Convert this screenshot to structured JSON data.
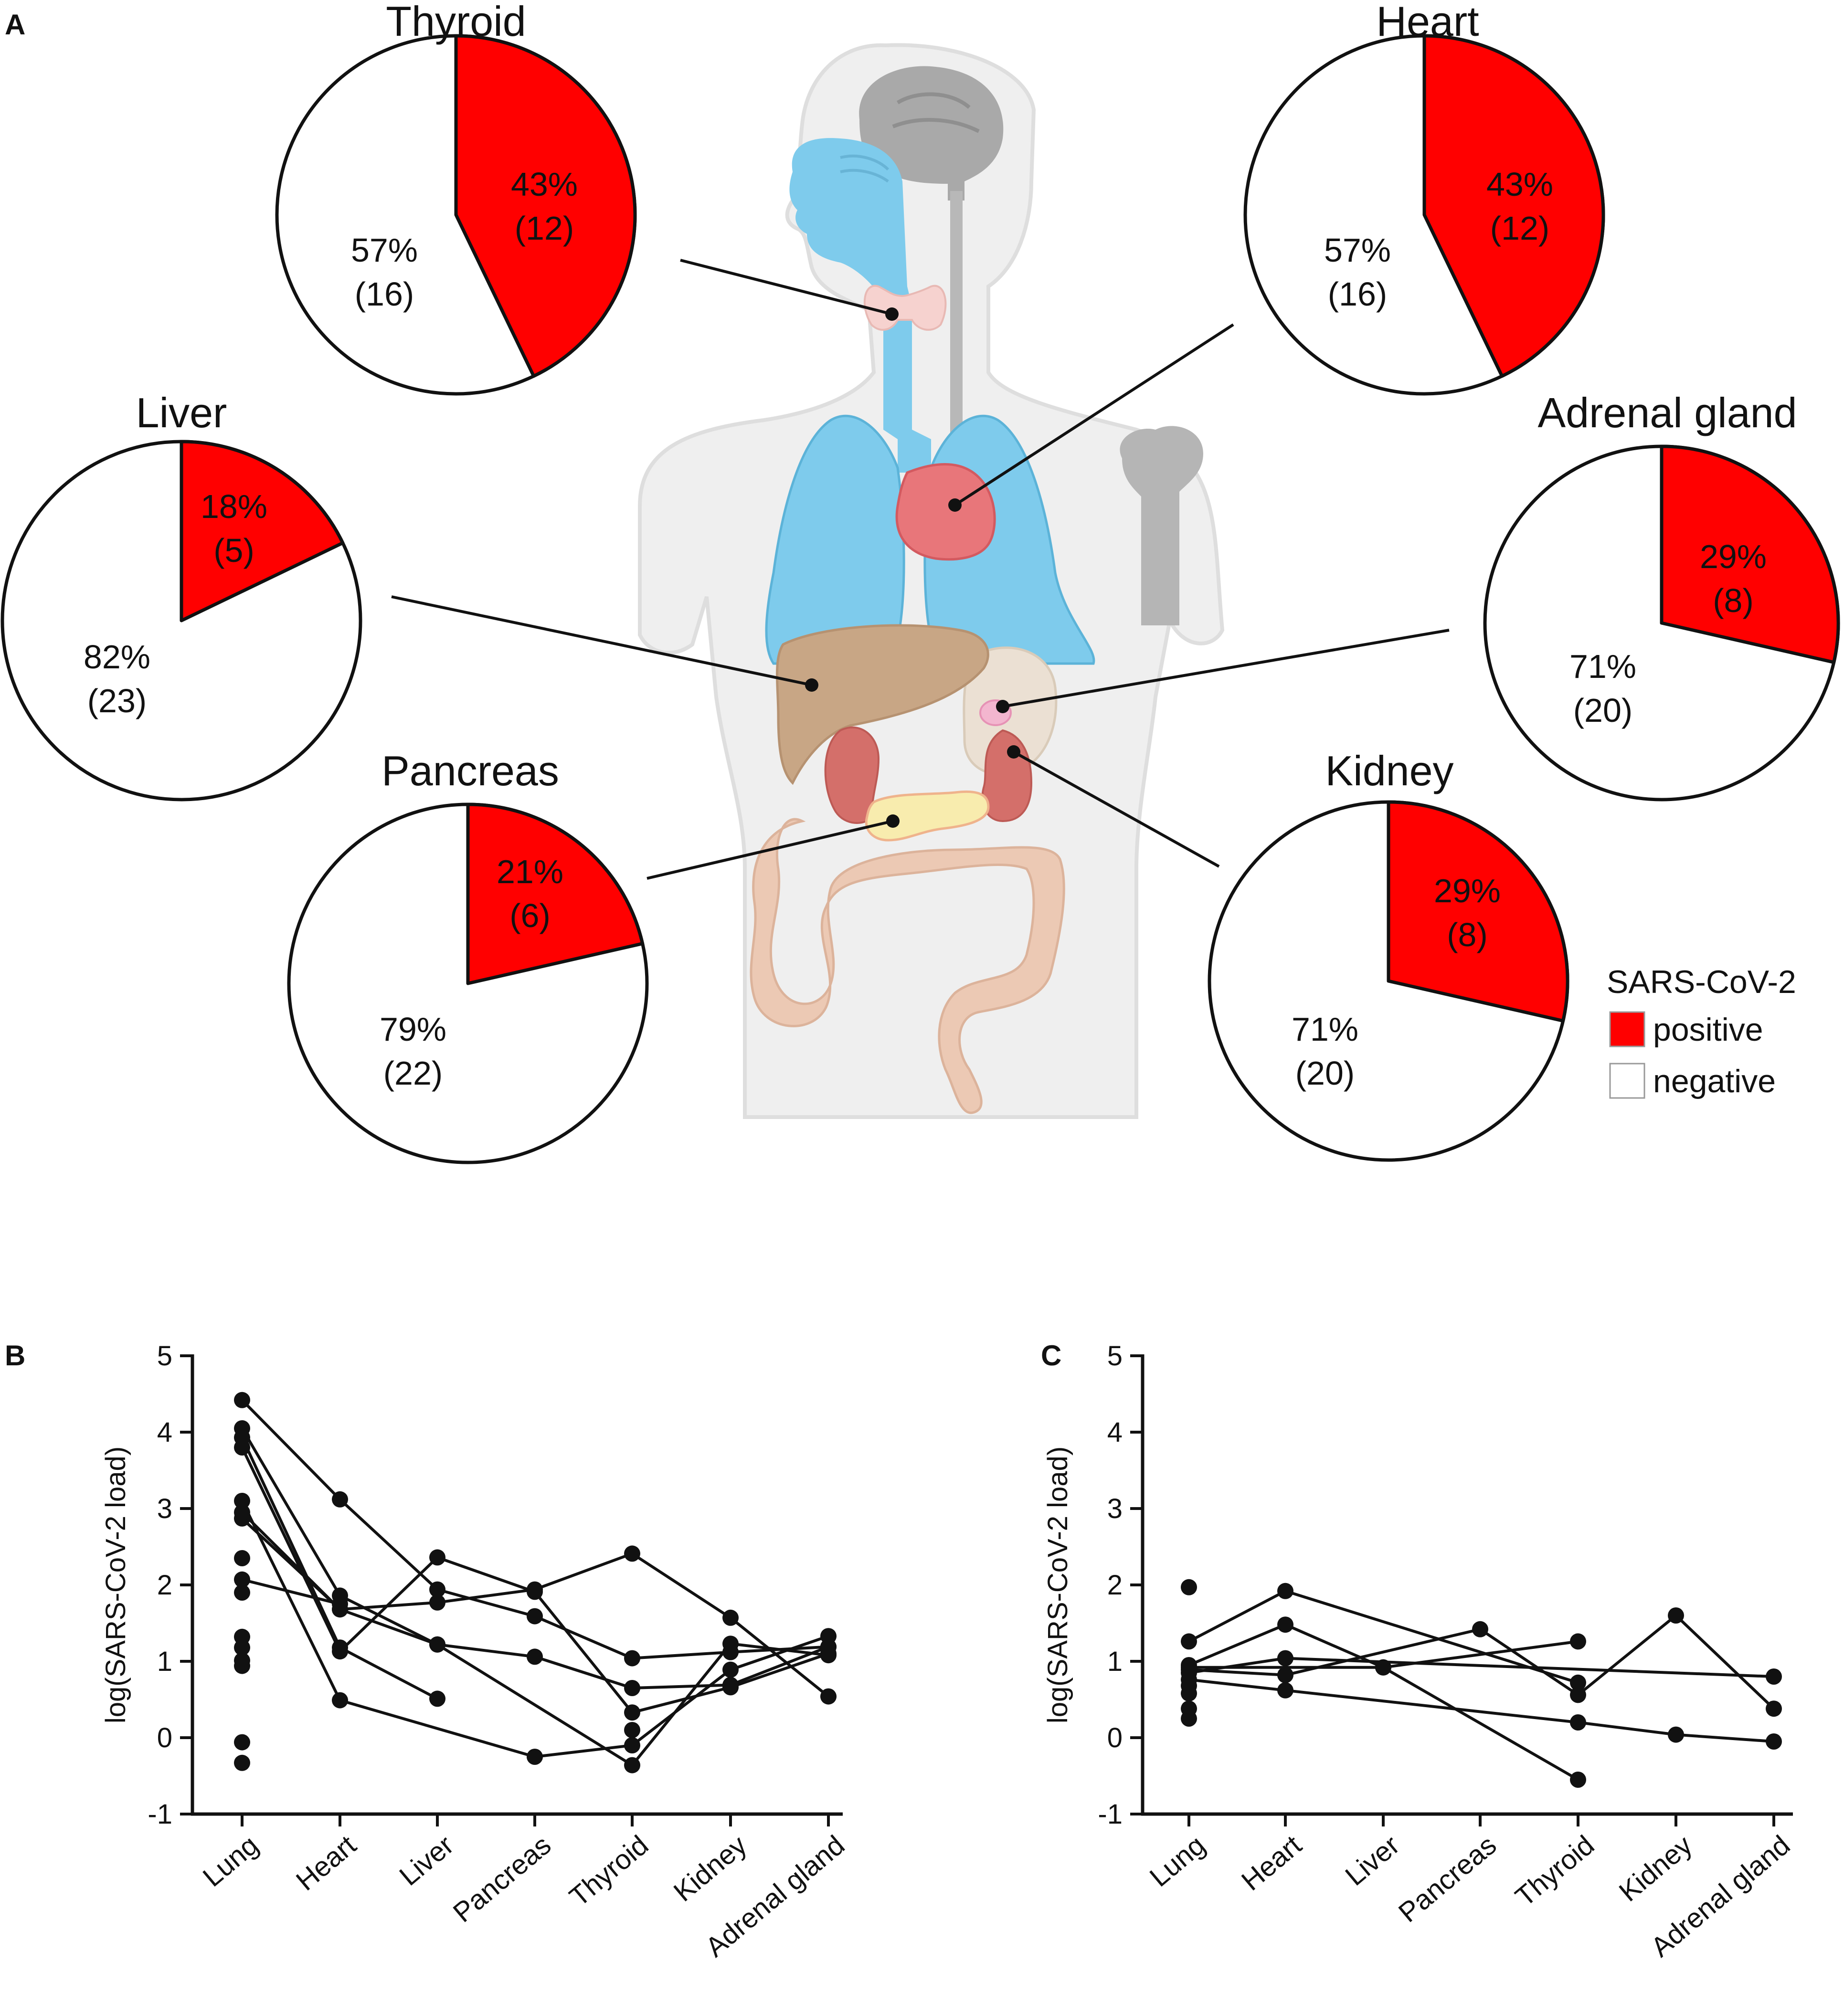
{
  "panel_labels": {
    "a": "A",
    "b": "B",
    "c": "C"
  },
  "legend": {
    "title": "SARS-CoV-2",
    "positive": "positive",
    "negative": "negative",
    "colors": {
      "positive": "#ff0000",
      "negative": "#ffffff"
    }
  },
  "chart_data": [
    {
      "type": "pie",
      "panel": "A",
      "pies": [
        {
          "organ": "Thyroid",
          "positive": {
            "percent": "43%",
            "count": "(12)",
            "value": 12
          },
          "negative": {
            "percent": "57%",
            "count": "(16)",
            "value": 16
          }
        },
        {
          "organ": "Heart",
          "positive": {
            "percent": "43%",
            "count": "(12)",
            "value": 12
          },
          "negative": {
            "percent": "57%",
            "count": "(16)",
            "value": 16
          }
        },
        {
          "organ": "Liver",
          "positive": {
            "percent": "18%",
            "count": "(5)",
            "value": 5
          },
          "negative": {
            "percent": "82%",
            "count": "(23)",
            "value": 23
          }
        },
        {
          "organ": "Adrenal gland",
          "positive": {
            "percent": "29%",
            "count": "(8)",
            "value": 8
          },
          "negative": {
            "percent": "71%",
            "count": "(20)",
            "value": 20
          }
        },
        {
          "organ": "Pancreas",
          "positive": {
            "percent": "21%",
            "count": "(6)",
            "value": 6
          },
          "negative": {
            "percent": "79%",
            "count": "(22)",
            "value": 22
          }
        },
        {
          "organ": "Kidney",
          "positive": {
            "percent": "29%",
            "count": "(8)",
            "value": 8
          },
          "negative": {
            "percent": "71%",
            "count": "(20)",
            "value": 20
          }
        }
      ]
    },
    {
      "type": "line",
      "panel": "B",
      "categories": [
        "Lung",
        "Heart",
        "Liver",
        "Pancreas",
        "Thyroid",
        "Kidney",
        "Adrenal gland"
      ],
      "ylabel": "log(SARS-CoV-2 load)",
      "ylim": [
        -1,
        5
      ],
      "yticks": [
        "5",
        "4",
        "3",
        "2",
        "1",
        "0",
        "-1"
      ],
      "series": [
        {
          "values": [
            4.42,
            3.12,
            1.94,
            1.59,
            1.04,
            1.12,
            1.19
          ]
        },
        {
          "values": [
            4.05,
            1.86,
            1.22,
            1.06,
            0.65,
            0.69,
            1.19
          ]
        },
        {
          "values": [
            3.93,
            1.18,
            0.51,
            null,
            null,
            null,
            null
          ]
        },
        {
          "values": [
            3.8,
            1.13,
            2.36,
            1.91,
            0.33,
            0.66,
            1.1
          ]
        },
        {
          "values": [
            3.1,
            0.49,
            null,
            -0.25,
            -0.1,
            0.89,
            1.33
          ]
        },
        {
          "values": [
            2.87,
            1.68,
            1.77,
            1.94,
            2.41,
            1.57,
            0.54
          ]
        },
        {
          "values": [
            2.07,
            1.75,
            null,
            null,
            null,
            null,
            null
          ]
        },
        {
          "values": [
            2.95,
            1.68,
            1.22,
            null,
            -0.36,
            1.23,
            1.08
          ]
        }
      ],
      "extra_points": [
        {
          "category": "Lung",
          "values": [
            2.35,
            1.9,
            1.32,
            1.18,
            1.01,
            0.94,
            -0.06,
            -0.33
          ]
        },
        {
          "category": "Thyroid",
          "values": [
            0.1
          ]
        }
      ]
    },
    {
      "type": "line",
      "panel": "C",
      "categories": [
        "Lung",
        "Heart",
        "Liver",
        "Pancreas",
        "Thyroid",
        "Kidney",
        "Adrenal gland"
      ],
      "ylabel": "log(SARS-CoV-2 load)",
      "ylim": [
        -1,
        5
      ],
      "yticks": [
        "5",
        "4",
        "3",
        "2",
        "1",
        "0",
        "-1"
      ],
      "series": [
        {
          "values": [
            1.26,
            1.92,
            null,
            null,
            0.72,
            null,
            null
          ]
        },
        {
          "values": [
            0.95,
            1.48,
            0.92,
            null,
            -0.55,
            null,
            null
          ]
        },
        {
          "values": [
            0.89,
            0.82,
            null,
            1.42,
            0.56,
            1.6,
            0.38
          ]
        },
        {
          "values": [
            0.85,
            1.04,
            null,
            null,
            null,
            null,
            0.8
          ]
        },
        {
          "values": [
            0.76,
            0.62,
            null,
            null,
            0.2,
            0.04,
            -0.05
          ]
        },
        {
          "values": [
            0.92,
            null,
            0.92,
            null,
            1.26,
            null,
            null
          ]
        }
      ],
      "extra_points": [
        {
          "category": "Lung",
          "values": [
            1.97,
            0.68,
            0.58,
            0.38,
            0.25
          ]
        }
      ]
    }
  ]
}
